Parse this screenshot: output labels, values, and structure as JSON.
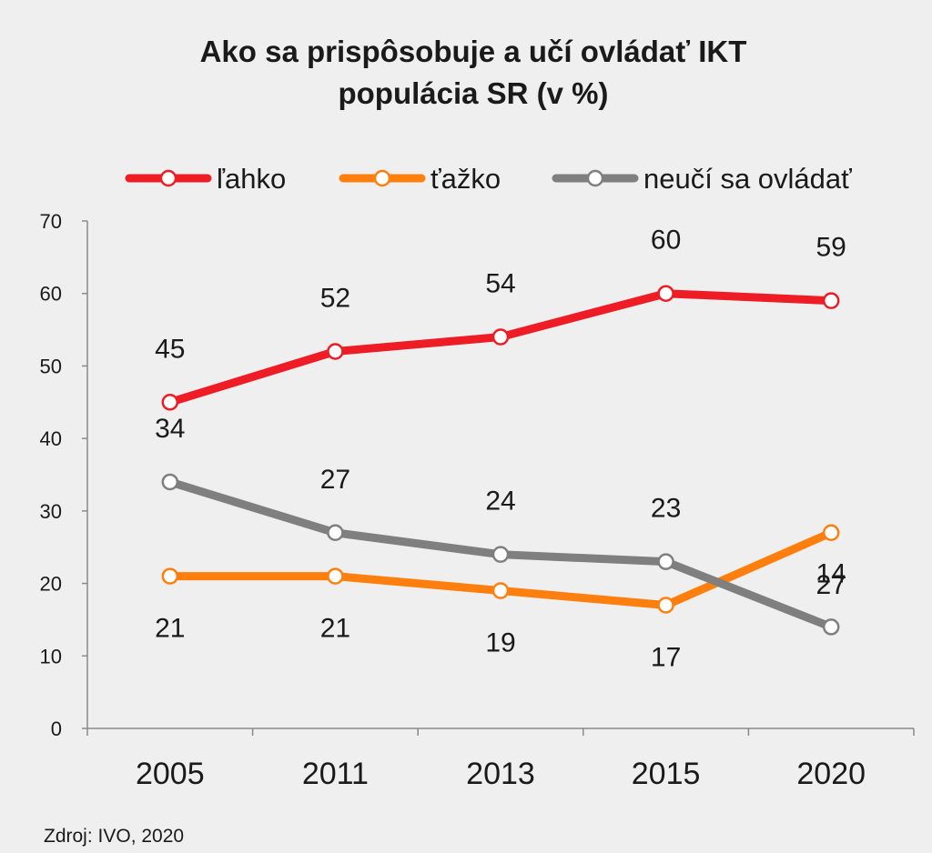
{
  "chart_data": {
    "type": "line",
    "title_lines": [
      "Ako sa prispôsobuje a učí ovládať IKT",
      "populácia SR (v %)"
    ],
    "categories": [
      "2005",
      "2011",
      "2013",
      "2015",
      "2020"
    ],
    "ylim": [
      0,
      70
    ],
    "yticks": [
      0,
      10,
      20,
      30,
      40,
      50,
      60,
      70
    ],
    "series": [
      {
        "name": "ľahko",
        "color": "#ee1c25",
        "values": [
          45,
          52,
          54,
          60,
          59
        ],
        "label_position": "above"
      },
      {
        "name": "ťažko",
        "color": "#ff7f0e",
        "values": [
          21,
          21,
          19,
          17,
          27
        ],
        "label_position": "below"
      },
      {
        "name": "neučí sa ovládať",
        "color": "#7f7f7f",
        "values": [
          34,
          27,
          24,
          23,
          14
        ],
        "label_position": "above"
      }
    ],
    "grid": false,
    "legend": "top",
    "source": "Zdroj: IVO, 2020"
  }
}
